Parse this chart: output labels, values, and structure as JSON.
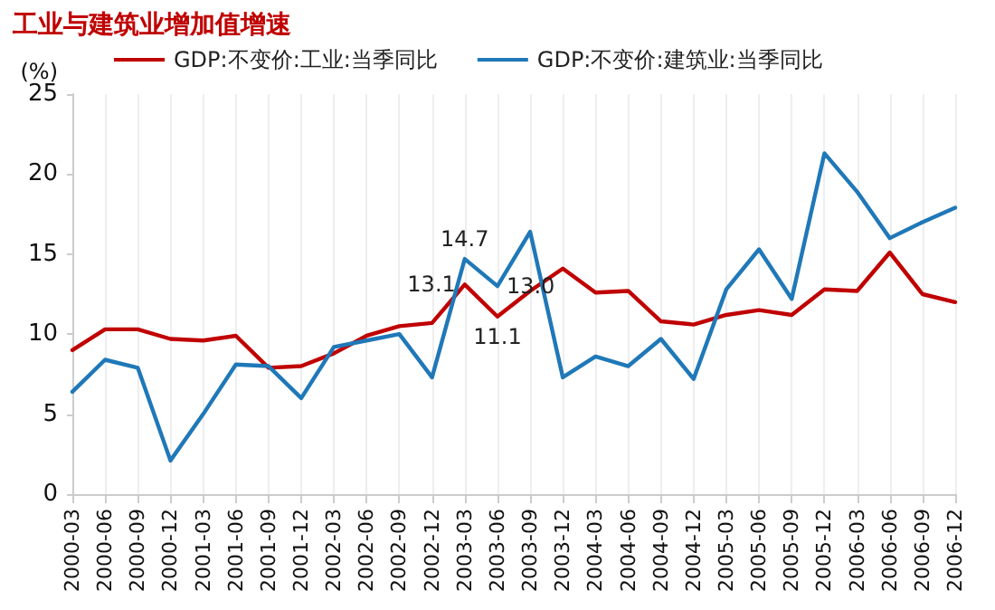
{
  "chart_data": {
    "type": "line",
    "title": "工业与建筑业增加值增速",
    "ylabel": "(%)",
    "categories": [
      "2000-03",
      "2000-06",
      "2000-09",
      "2000-12",
      "2001-03",
      "2001-06",
      "2001-09",
      "2001-12",
      "2002-03",
      "2002-06",
      "2002-09",
      "2002-12",
      "2003-03",
      "2003-06",
      "2003-09",
      "2003-12",
      "2004-03",
      "2004-06",
      "2004-09",
      "2004-12",
      "2005-03",
      "2005-06",
      "2005-09",
      "2005-12",
      "2006-03",
      "2006-06",
      "2006-09",
      "2006-12"
    ],
    "series": [
      {
        "name": "GDP:不变价:工业:当季同比",
        "color": "#c00000",
        "values": [
          9.0,
          10.3,
          10.3,
          9.7,
          9.6,
          9.9,
          7.9,
          8.0,
          8.8,
          9.9,
          10.5,
          10.7,
          13.1,
          11.1,
          12.7,
          14.1,
          12.6,
          12.7,
          10.8,
          10.6,
          11.2,
          11.5,
          11.2,
          12.8,
          12.7,
          15.1,
          12.5,
          12.0
        ],
        "value_labels": [
          null,
          null,
          null,
          null,
          null,
          null,
          null,
          null,
          null,
          null,
          null,
          null,
          "13.1",
          "11.1",
          null,
          null,
          null,
          null,
          null,
          null,
          null,
          null,
          null,
          null,
          null,
          null,
          null,
          null
        ]
      },
      {
        "name": "GDP:不变价:建筑业:当季同比",
        "color": "#1f78b8",
        "values": [
          6.4,
          8.4,
          7.9,
          2.1,
          5.0,
          8.1,
          8.0,
          6.0,
          9.2,
          9.6,
          10.0,
          7.3,
          14.7,
          13.0,
          16.4,
          7.3,
          8.6,
          8.0,
          9.7,
          7.2,
          12.8,
          15.3,
          12.2,
          21.3,
          18.9,
          16.0,
          17.0,
          17.9
        ],
        "value_labels": [
          null,
          null,
          null,
          null,
          null,
          null,
          null,
          null,
          null,
          null,
          null,
          null,
          "14.7",
          "13.0",
          null,
          null,
          null,
          null,
          null,
          null,
          null,
          null,
          null,
          null,
          null,
          null,
          null,
          null
        ]
      }
    ],
    "ylim": [
      0,
      25
    ],
    "yticks": [
      0,
      5,
      10,
      15,
      20,
      25
    ],
    "grid": "x",
    "legend": "top",
    "marker": "none",
    "line_style": "solid"
  }
}
